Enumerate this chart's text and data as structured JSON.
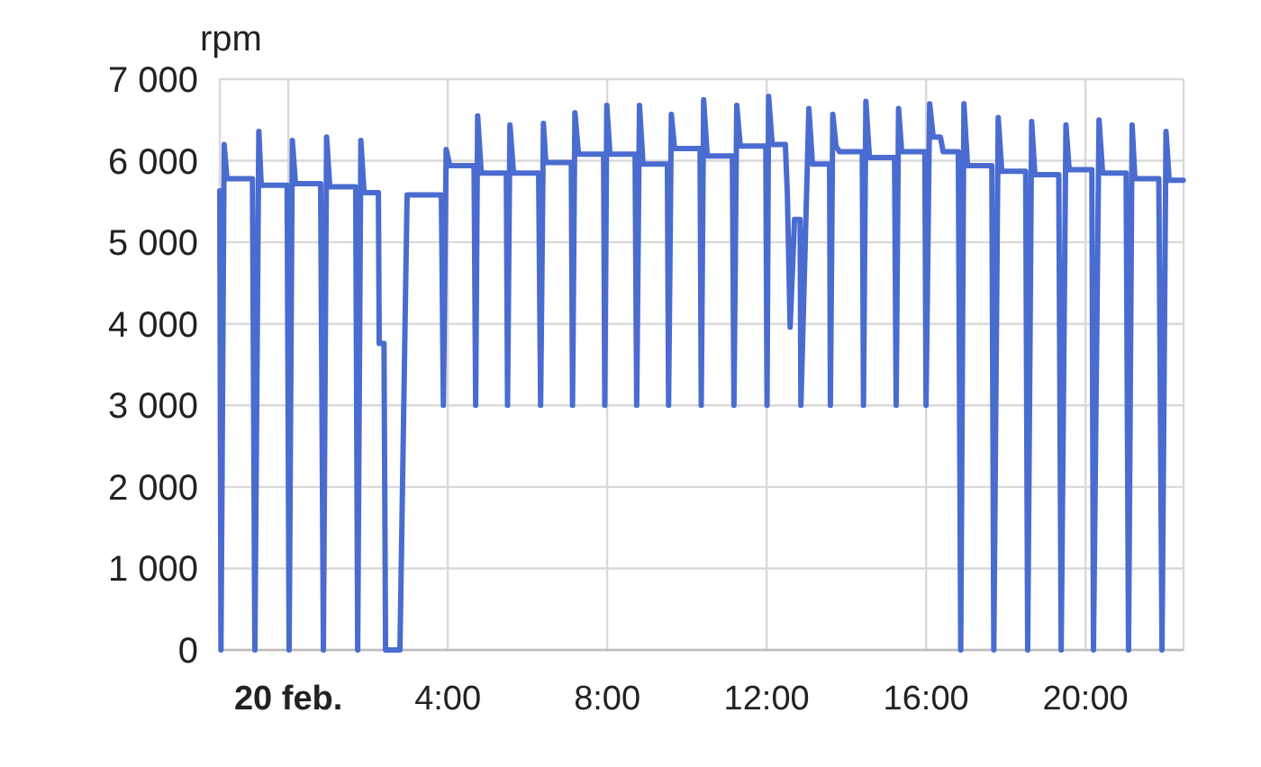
{
  "chart_data": {
    "type": "line",
    "ylabel": "rpm",
    "color": "#4a6cd0",
    "marker": "none",
    "line_style": "solid",
    "grid": true,
    "xlim": [
      -1.72,
      22.46
    ],
    "xticks": [
      {
        "value": 0,
        "label": "20 feb."
      },
      {
        "value": 4,
        "label": "4:00"
      },
      {
        "value": 8,
        "label": "8:00"
      },
      {
        "value": 12,
        "label": "12:00"
      },
      {
        "value": 16,
        "label": "16:00"
      },
      {
        "value": 20,
        "label": "20:00"
      }
    ],
    "ylim": [
      0,
      7000
    ],
    "yticks": [
      0,
      {
        "value": 1000,
        "label": "1 000"
      },
      {
        "value": 2000,
        "label": "2 000"
      },
      {
        "value": 3000,
        "label": "3 000"
      },
      {
        "value": 4000,
        "label": "4 000"
      },
      {
        "value": 5000,
        "label": "5 000"
      },
      {
        "value": 6000,
        "label": "6 000"
      },
      {
        "value": 7000,
        "label": "7 000"
      }
    ],
    "x": [
      -1.72,
      -1.69,
      -1.61,
      -1.54,
      -0.9,
      -0.84,
      -0.74,
      -0.68,
      -0.03,
      0.02,
      0.1,
      0.18,
      0.81,
      0.88,
      0.96,
      1.04,
      1.69,
      1.74,
      1.82,
      1.9,
      2.26,
      2.28,
      2.4,
      2.44,
      2.8,
      2.98,
      3.84,
      3.89,
      3.96,
      4.05,
      4.66,
      4.7,
      4.75,
      4.84,
      5.47,
      5.5,
      5.56,
      5.65,
      6.28,
      6.33,
      6.4,
      6.46,
      7.1,
      7.13,
      7.19,
      7.28,
      7.91,
      7.94,
      7.99,
      8.07,
      8.7,
      8.74,
      8.81,
      8.9,
      9.51,
      9.54,
      9.61,
      9.69,
      10.33,
      10.36,
      10.42,
      10.51,
      11.14,
      11.18,
      11.25,
      11.34,
      11.98,
      12.01,
      12.05,
      12.14,
      12.47,
      12.52,
      12.59,
      12.7,
      12.84,
      12.86,
      13.06,
      13.15,
      13.58,
      13.6,
      13.66,
      13.74,
      13.83,
      14.4,
      14.43,
      14.49,
      14.58,
      15.21,
      15.25,
      15.31,
      15.39,
      15.97,
      16,
      16.09,
      16.18,
      16.36,
      16.43,
      16.81,
      16.87,
      16.95,
      17.04,
      17.65,
      17.7,
      17.81,
      17.9,
      18.5,
      18.55,
      18.65,
      18.73,
      19.33,
      19.39,
      19.51,
      19.59,
      20.16,
      20.2,
      20.34,
      20.43,
      21.02,
      21.08,
      21.17,
      21.24,
      21.84,
      21.92,
      22.02,
      22.1,
      22.45
    ],
    "values": [
      5630,
      0,
      6200,
      5780,
      5780,
      0,
      6360,
      5700,
      5700,
      0,
      6250,
      5720,
      5720,
      0,
      6290,
      5680,
      5680,
      0,
      6250,
      5610,
      5610,
      3760,
      3760,
      0,
      0,
      5580,
      5580,
      3000,
      6140,
      5940,
      5940,
      3000,
      6550,
      5850,
      5850,
      3000,
      6440,
      5850,
      5850,
      3000,
      6460,
      5980,
      5980,
      3000,
      6590,
      6080,
      6080,
      3000,
      6680,
      6080,
      6080,
      3000,
      6680,
      5960,
      5960,
      3000,
      6570,
      6150,
      6150,
      3000,
      6750,
      6060,
      6060,
      3000,
      6680,
      6180,
      6180,
      3000,
      6790,
      6200,
      6200,
      5600,
      3960,
      5280,
      5280,
      3000,
      6640,
      5960,
      5960,
      3000,
      6570,
      6180,
      6110,
      6110,
      3000,
      6730,
      6040,
      6040,
      3000,
      6640,
      6110,
      6110,
      3000,
      6700,
      6290,
      6290,
      6110,
      6110,
      0,
      6700,
      5940,
      5940,
      0,
      6530,
      5870,
      5870,
      0,
      6480,
      5830,
      5830,
      0,
      6440,
      5890,
      5890,
      0,
      6500,
      5850,
      5850,
      0,
      6440,
      5780,
      5780,
      0,
      6360,
      5760,
      5760
    ]
  }
}
